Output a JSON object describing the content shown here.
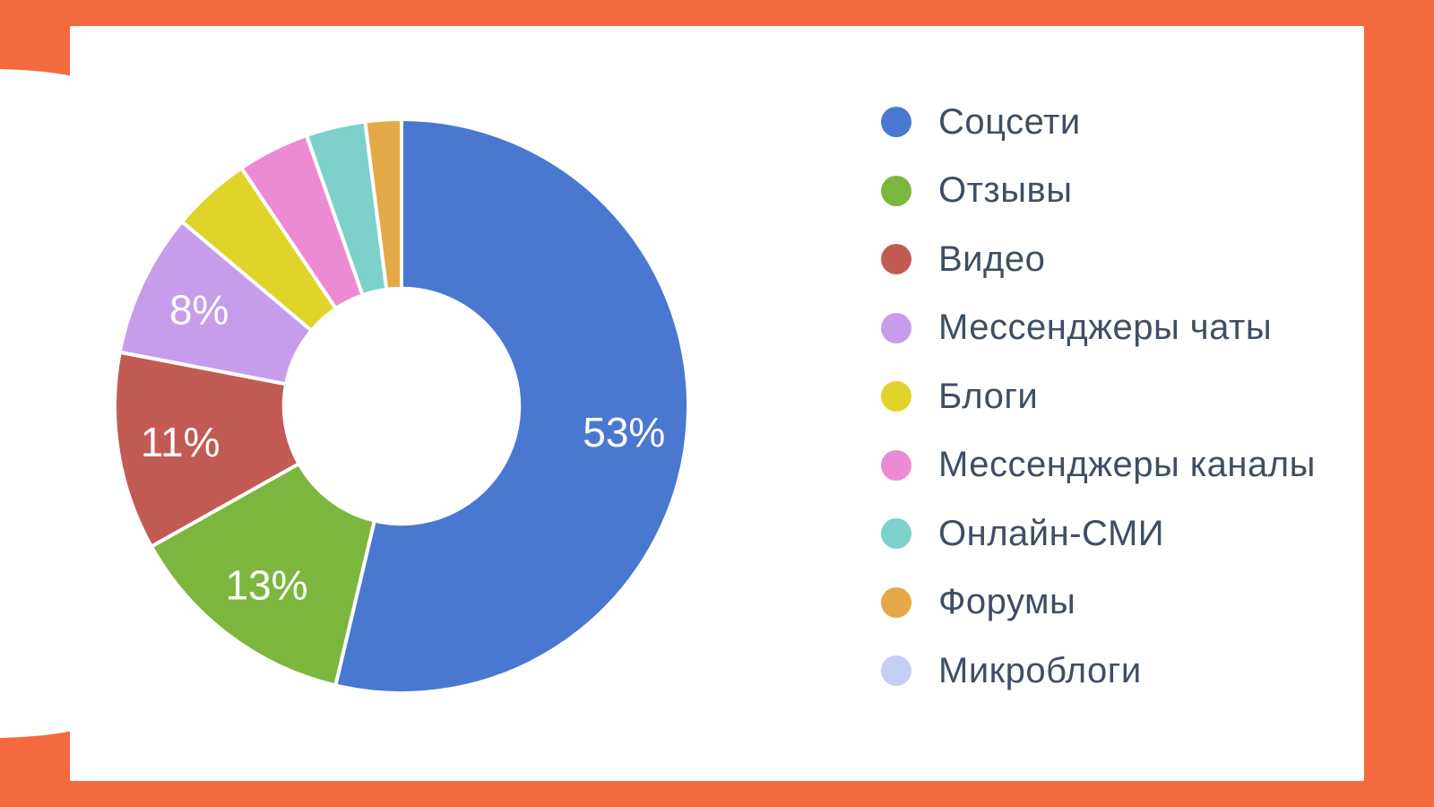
{
  "page": {
    "background_color": "#F5693F",
    "card_color": "#FFFFFF"
  },
  "chart_data": {
    "type": "pie",
    "subtype": "donut",
    "title": "",
    "start_angle_deg": 0,
    "direction": "clockwise",
    "hole_radius_ratio": 0.41,
    "gap_color": "#FFFFFF",
    "legend_position": "right",
    "legend_text_color": "#3F4E63",
    "data_label_color": "#FFFFFF",
    "series": [
      {
        "label": "Соцсети",
        "value": 53,
        "color": "#4A78D0",
        "data_label": "53%"
      },
      {
        "label": "Отзывы",
        "value": 13,
        "color": "#7DB63E",
        "data_label": "13%"
      },
      {
        "label": "Видео",
        "value": 11,
        "color": "#C25B54",
        "data_label": "11%"
      },
      {
        "label": "Мессенджеры чаты",
        "value": 8,
        "color": "#C79CEA",
        "data_label": "8%"
      },
      {
        "label": "Блоги",
        "value": 4.4,
        "color": "#E0D42A",
        "data_label": ""
      },
      {
        "label": "Мессенджеры каналы",
        "value": 4,
        "color": "#EC8BD3",
        "data_label": ""
      },
      {
        "label": "Онлайн-СМИ",
        "value": 3.3,
        "color": "#7ED0CA",
        "data_label": ""
      },
      {
        "label": "Форумы",
        "value": 2,
        "color": "#E3AA47",
        "data_label": ""
      },
      {
        "label": "Микроблоги",
        "value": 0,
        "color": "#C5CEF3",
        "data_label": ""
      }
    ]
  }
}
